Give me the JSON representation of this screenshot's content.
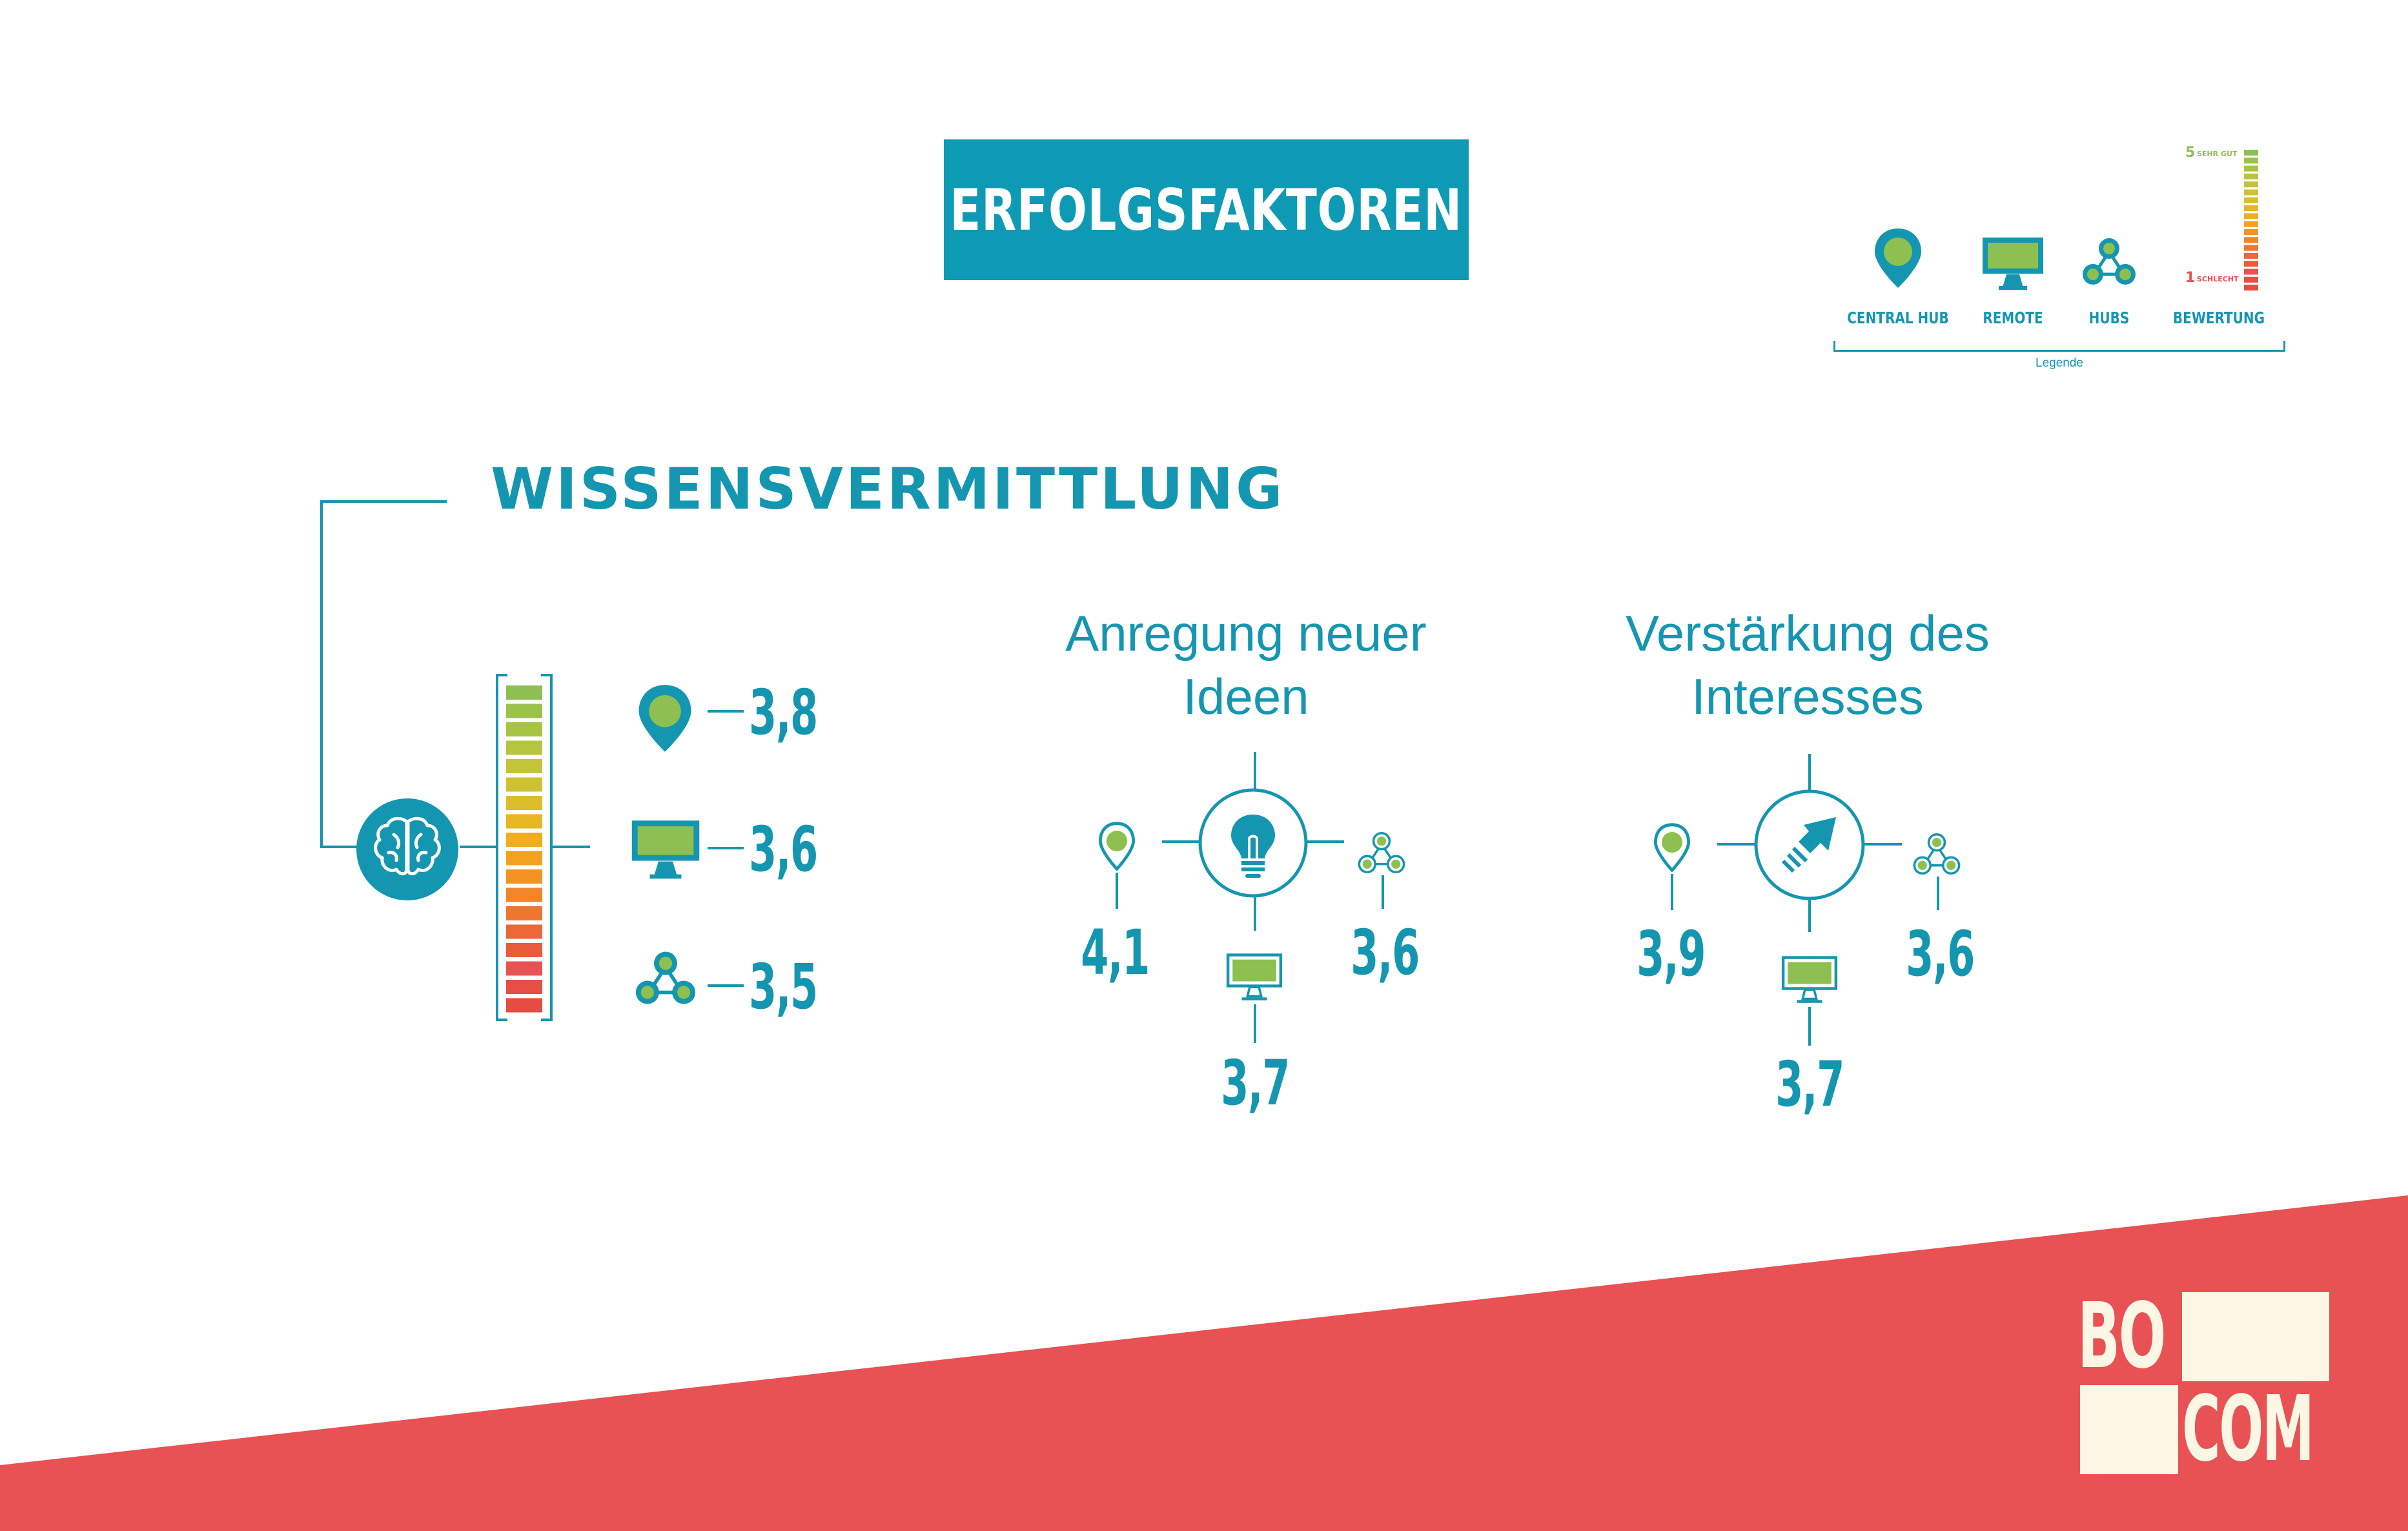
{
  "header": {
    "title": "ERFOLGSFAKTOREN"
  },
  "legend": {
    "items": [
      {
        "icon": "pin-icon",
        "label": "CENTRAL HUB"
      },
      {
        "icon": "monitor-icon",
        "label": "REMOTE"
      },
      {
        "icon": "hubs-icon",
        "label": "HUBS"
      },
      {
        "icon": "rating-scale-icon",
        "label": "BEWERTUNG"
      }
    ],
    "caption": "Legende",
    "scale_top_num": "5",
    "scale_top_word": "SEHR GUT",
    "scale_bottom_num": "1",
    "scale_bottom_word": "SCHLECHT"
  },
  "section": {
    "title": "WISSENSVERMITTLUNG",
    "values": {
      "central_hub": "3,8",
      "remote": "3,6",
      "hubs": "3,5"
    }
  },
  "ideas": {
    "title_line1": "Anregung neuer",
    "title_line2": "Ideen",
    "values": {
      "central_hub": "4,1",
      "remote": "3,7",
      "hubs": "3,6"
    }
  },
  "interest": {
    "title_line1": "Verstärkung des",
    "title_line2": "Interesses",
    "values": {
      "central_hub": "3,9",
      "remote": "3,7",
      "hubs": "3,6"
    }
  },
  "logo": {
    "text_top": "BO",
    "text_bottom": "COM"
  },
  "colors": {
    "teal": "#1596b0",
    "green": "#8dc050",
    "banner_red": "#e85254",
    "logo_cream": "#fbf7e4"
  }
}
